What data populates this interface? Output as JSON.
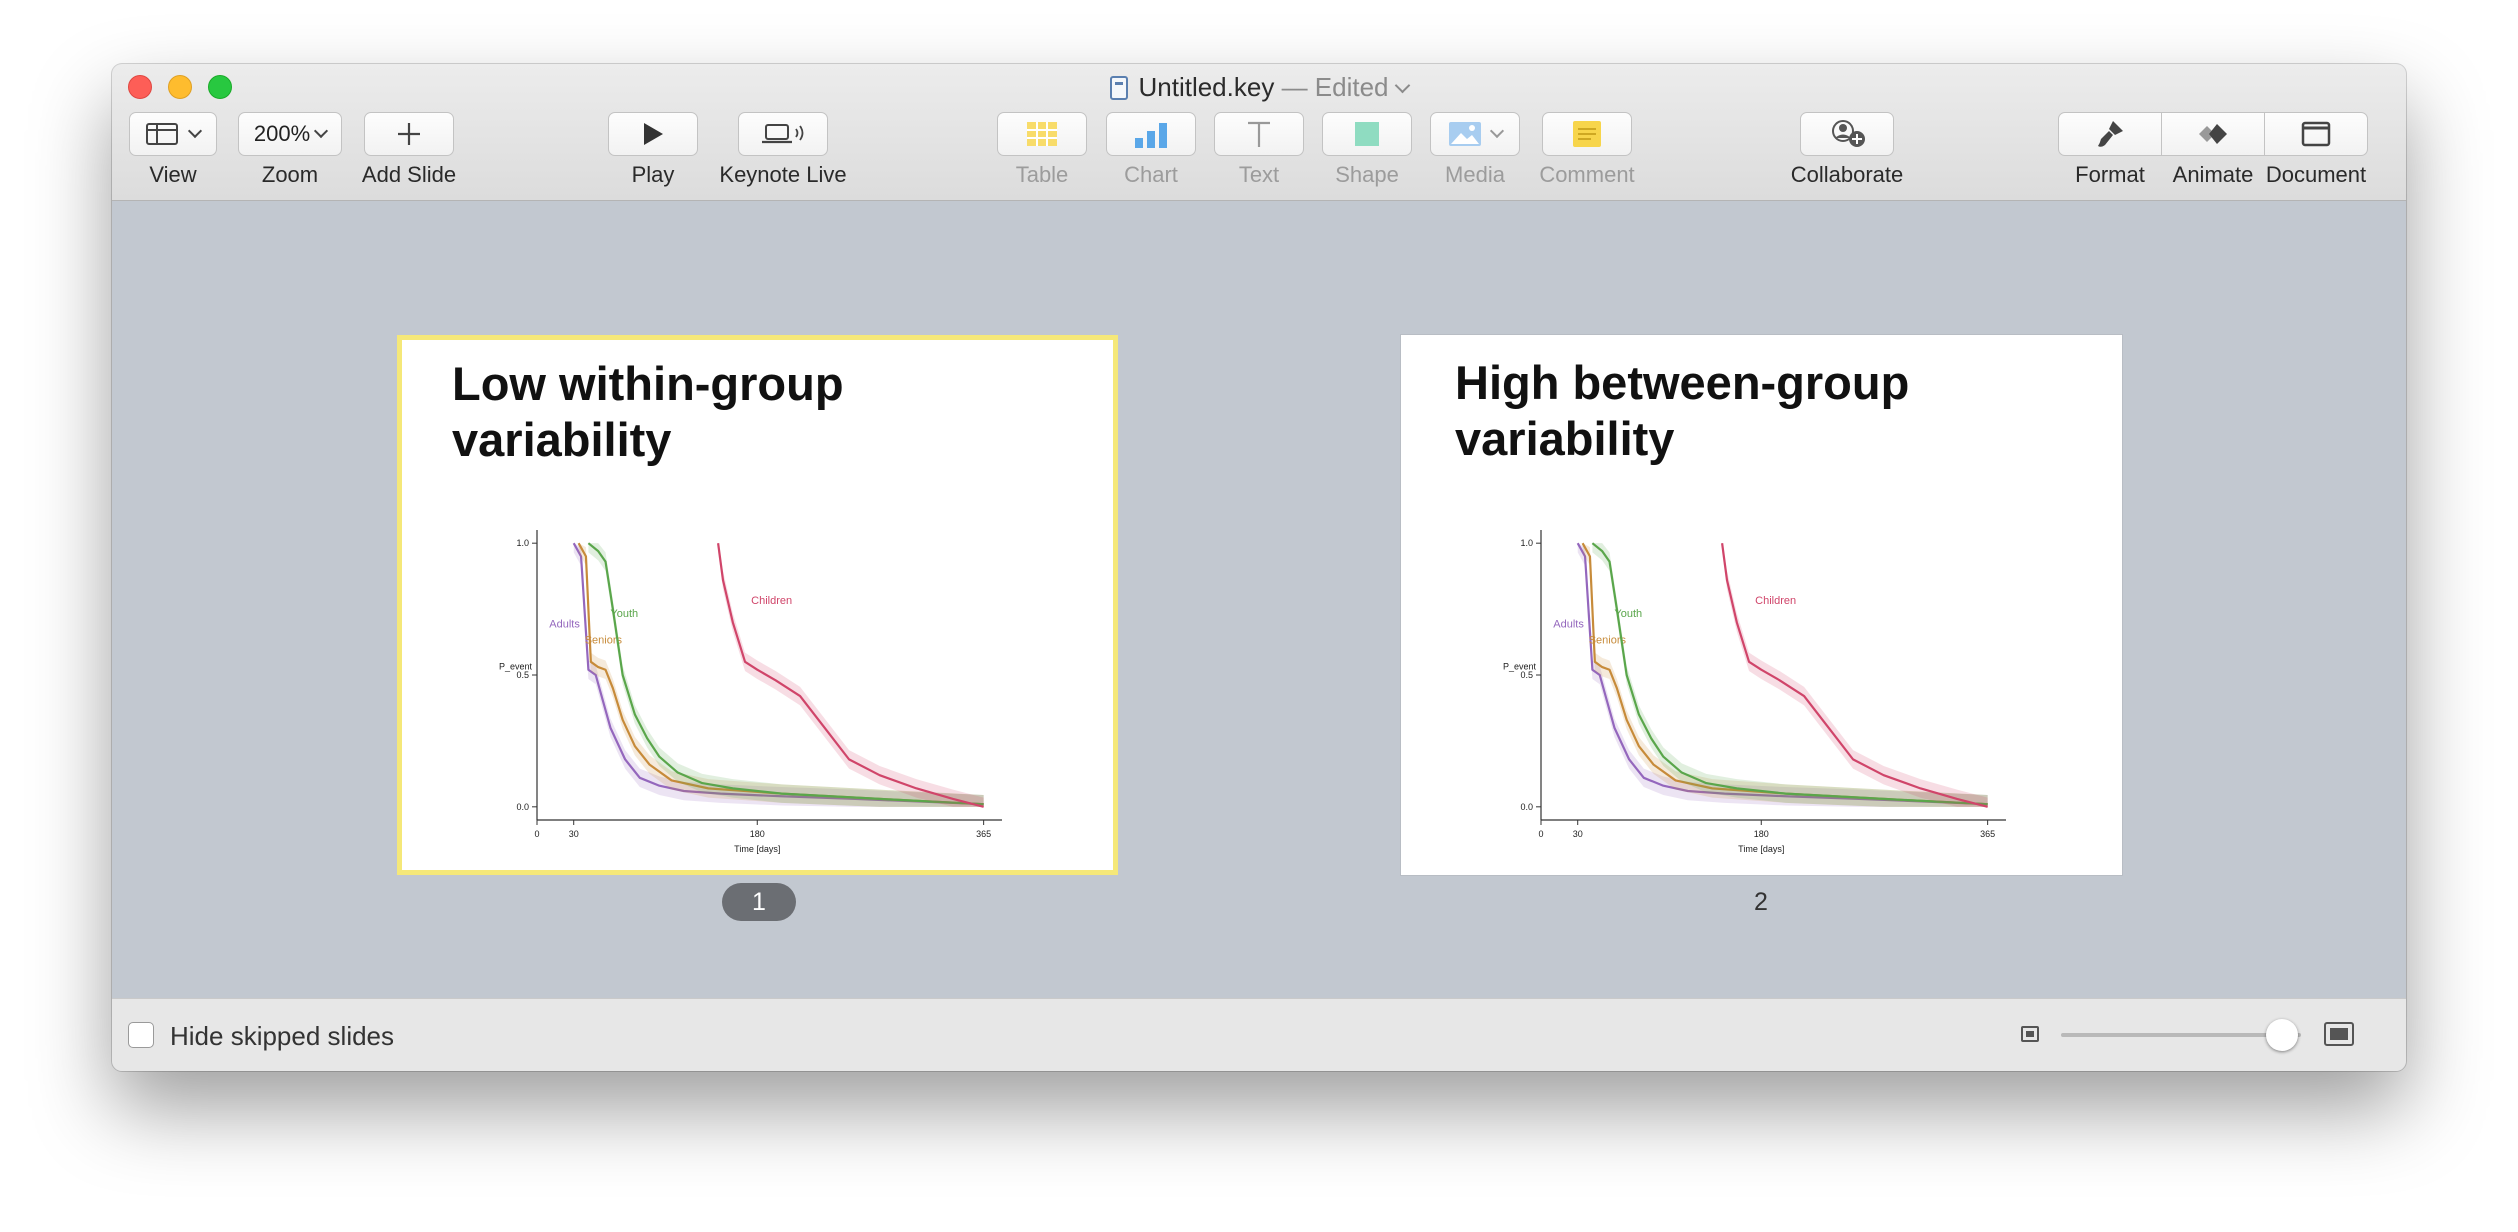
{
  "window": {
    "doc_name": "Untitled.key",
    "doc_status": "— Edited"
  },
  "toolbar": {
    "view": "View",
    "zoom_value": "200%",
    "zoom": "Zoom",
    "add_slide": "Add Slide",
    "play": "Play",
    "keynote_live": "Keynote Live",
    "table": "Table",
    "chart": "Chart",
    "text": "Text",
    "shape": "Shape",
    "media": "Media",
    "comment": "Comment",
    "collaborate": "Collaborate",
    "format": "Format",
    "animate": "Animate",
    "document": "Document"
  },
  "slides": [
    {
      "number": "1",
      "selected": true,
      "title_line1": "Low within-group",
      "title_line2": "variability"
    },
    {
      "number": "2",
      "selected": false,
      "title_line1": "High between-group",
      "title_line2": "variability"
    }
  ],
  "bottom": {
    "hide_skipped_label": "Hide skipped slides",
    "hide_skipped_checked": false,
    "thumbnail_size_level": 0.92
  },
  "chart_data": [
    {
      "type": "line",
      "xlabel": "Time [days]",
      "ylabel": "P_event",
      "xticks": [
        "0",
        "30",
        "180",
        "365"
      ],
      "yticks": [
        "0.0",
        "0.5",
        "1.0"
      ],
      "xlim": [
        0,
        380
      ],
      "ylim": [
        -0.05,
        1.05
      ],
      "series": [
        {
          "name": "Adults",
          "color": "#9467bd",
          "x": [
            30,
            36,
            42,
            48,
            54,
            60,
            72,
            84,
            100,
            120,
            150,
            200,
            260,
            365
          ],
          "y": [
            1.0,
            0.95,
            0.52,
            0.5,
            0.4,
            0.3,
            0.18,
            0.11,
            0.08,
            0.06,
            0.05,
            0.04,
            0.03,
            0.01
          ]
        },
        {
          "name": "Seniors",
          "color": "#c78b3a",
          "x": [
            34,
            40,
            44,
            50,
            56,
            62,
            70,
            80,
            92,
            110,
            140,
            200,
            280,
            365
          ],
          "y": [
            1.0,
            0.95,
            0.55,
            0.53,
            0.52,
            0.45,
            0.33,
            0.23,
            0.16,
            0.1,
            0.07,
            0.05,
            0.03,
            0.01
          ]
        },
        {
          "name": "Youth",
          "color": "#5aa64b",
          "x": [
            42,
            50,
            56,
            62,
            70,
            80,
            90,
            100,
            115,
            135,
            160,
            200,
            280,
            365
          ],
          "y": [
            1.0,
            0.97,
            0.93,
            0.75,
            0.5,
            0.35,
            0.26,
            0.19,
            0.13,
            0.09,
            0.07,
            0.05,
            0.03,
            0.01
          ]
        },
        {
          "name": "Children",
          "color": "#d0456a",
          "x": [
            148,
            152,
            160,
            170,
            180,
            195,
            215,
            235,
            255,
            280,
            310,
            340,
            365
          ],
          "y": [
            1.0,
            0.86,
            0.7,
            0.55,
            0.52,
            0.48,
            0.42,
            0.3,
            0.18,
            0.12,
            0.07,
            0.03,
            0.0
          ]
        }
      ]
    }
  ]
}
